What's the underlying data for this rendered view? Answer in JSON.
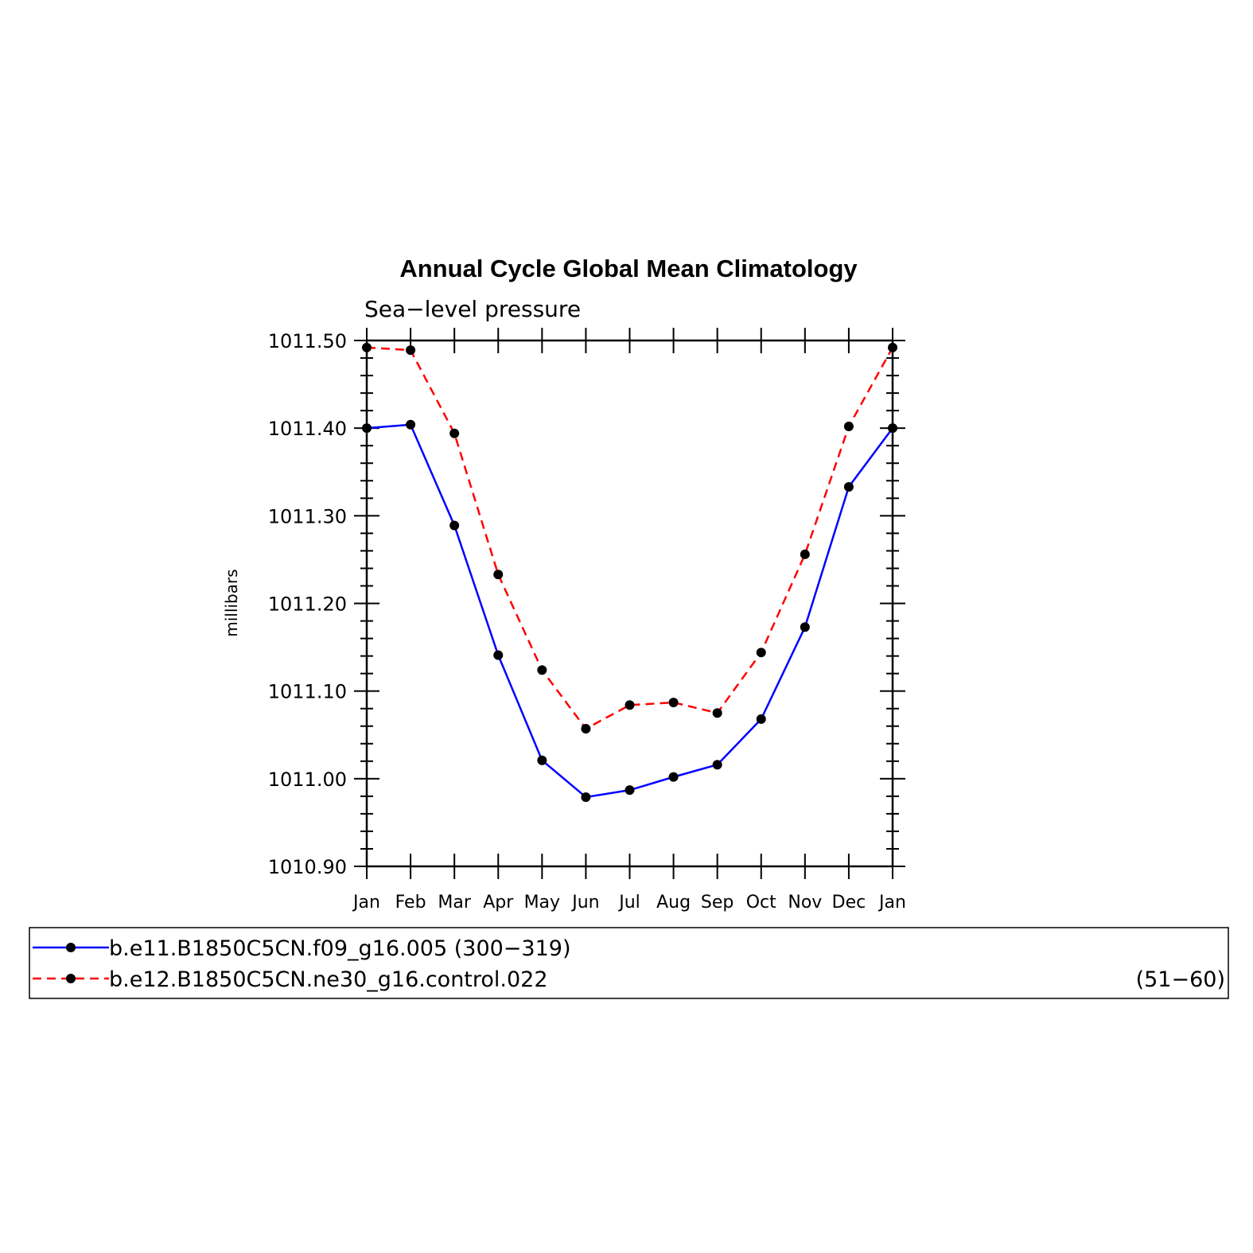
{
  "chart_data": {
    "type": "line",
    "title": "Annual Cycle Global Mean Climatology",
    "subtitle": "Sea−level pressure",
    "ylabel": "millibars",
    "xlabel": "",
    "ylim": [
      1010.9,
      1011.5
    ],
    "yticks": [
      "1011.50",
      "1011.40",
      "1011.30",
      "1011.20",
      "1011.10",
      "1011.00",
      "1010.90"
    ],
    "ytick_values": [
      1011.5,
      1011.4,
      1011.3,
      1011.2,
      1011.1,
      1011.0,
      1010.9
    ],
    "categories": [
      "Jan",
      "Feb",
      "Mar",
      "Apr",
      "May",
      "Jun",
      "Jul",
      "Aug",
      "Sep",
      "Oct",
      "Nov",
      "Dec",
      "Jan"
    ],
    "series": [
      {
        "name": "b.e11.B1850C5CN.f09_g16.005 (300−319)",
        "legend_label": "b.e11.B1850C5CN.f09_g16.005 (300−319)",
        "legend_suffix": "",
        "color": "#0000ff",
        "dash": "solid",
        "values": [
          1011.4,
          1011.404,
          1011.289,
          1011.141,
          1011.021,
          1010.979,
          1010.987,
          1011.002,
          1011.016,
          1011.068,
          1011.173,
          1011.333,
          1011.4
        ]
      },
      {
        "name": "b.e12.B1850C5CN.ne30_g16.control.022 (51−60)",
        "legend_label": "b.e12.B1850C5CN.ne30_g16.control.022",
        "legend_suffix": "(51−60)",
        "color": "#ff0000",
        "dash": "dashed",
        "values": [
          1011.492,
          1011.489,
          1011.394,
          1011.233,
          1011.124,
          1011.057,
          1011.084,
          1011.087,
          1011.075,
          1011.144,
          1011.256,
          1011.402,
          1011.492
        ]
      }
    ],
    "marker_color": "#000000",
    "grid": false,
    "legend_position": "bottom"
  }
}
